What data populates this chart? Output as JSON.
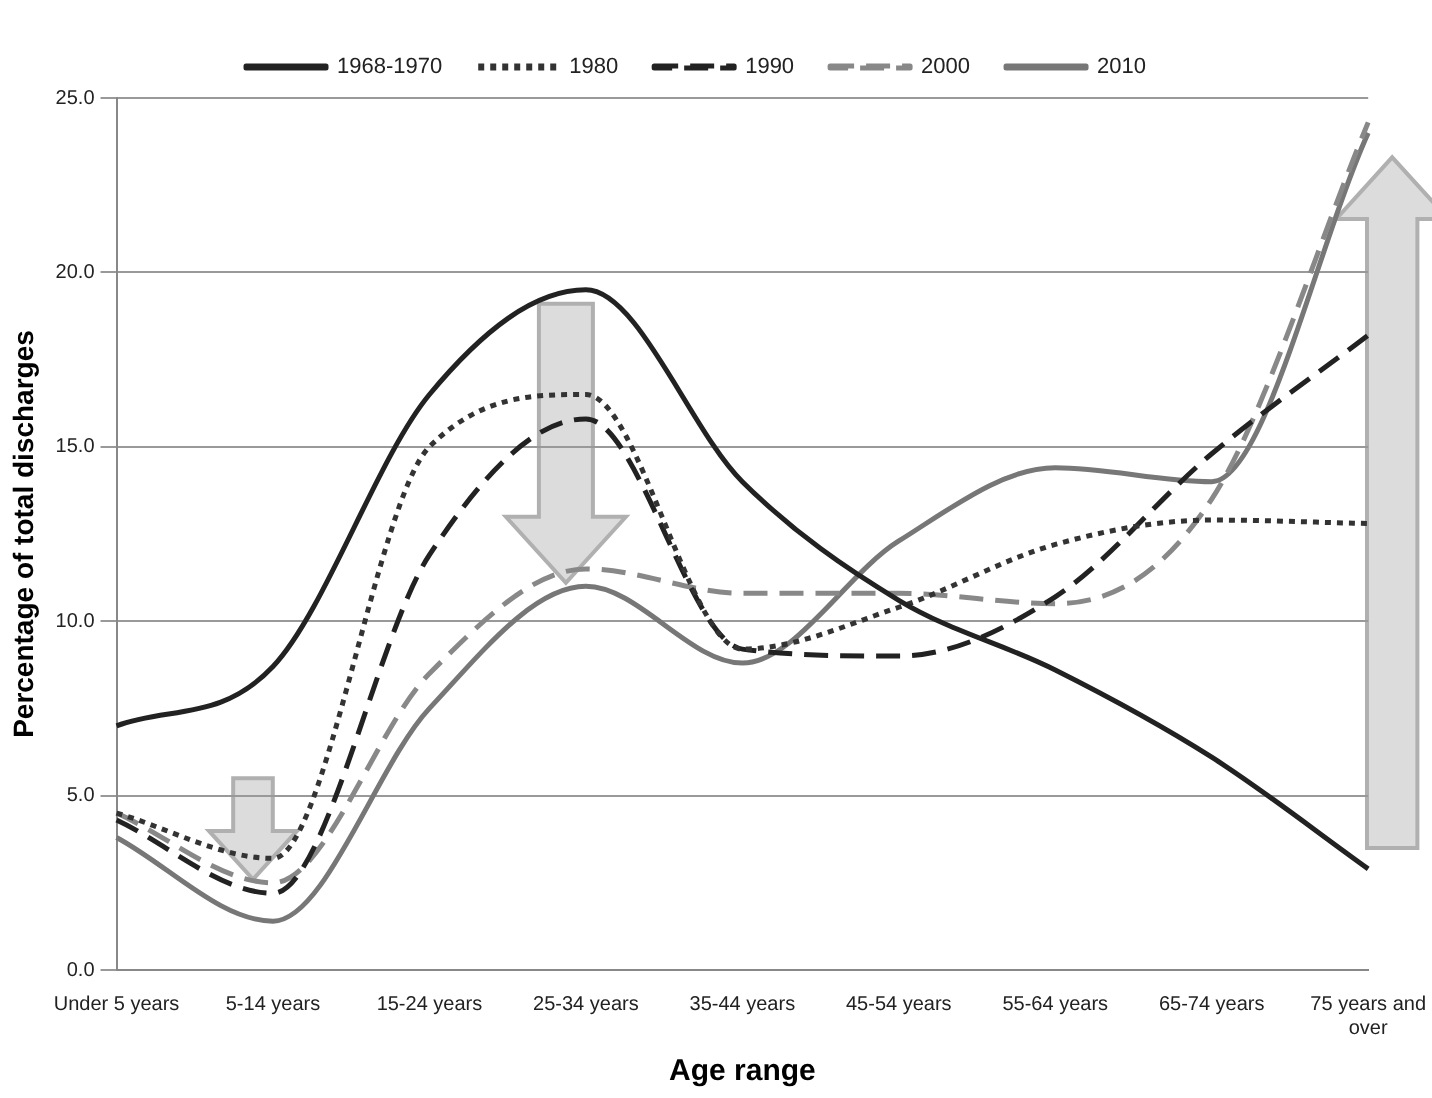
{
  "chart_data": {
    "type": "line",
    "xlabel": "Age range",
    "ylabel": "Percentage of total discharges",
    "categories": [
      "Under 5 years",
      "5-14 years",
      "15-24 years",
      "25-34 years",
      "35-44 years",
      "45-54 years",
      "55-64 years",
      "65-74 years",
      "75 years and over"
    ],
    "series": [
      {
        "name": "1968-1970",
        "color": "#222222",
        "line_style": "solid",
        "values": [
          7.0,
          8.7,
          16.5,
          19.5,
          14.0,
          10.6,
          8.6,
          6.1,
          2.9
        ]
      },
      {
        "name": "1980",
        "color": "#333333",
        "line_style": "dotted",
        "values": [
          4.5,
          3.2,
          15.0,
          16.5,
          9.2,
          10.4,
          12.2,
          12.9,
          12.8
        ]
      },
      {
        "name": "1990",
        "color": "#222222",
        "line_style": "dashed",
        "values": [
          4.3,
          2.2,
          11.9,
          15.8,
          9.2,
          9.0,
          10.7,
          14.8,
          18.2
        ]
      },
      {
        "name": "2000",
        "color": "#888888",
        "line_style": "dashed",
        "values": [
          4.5,
          2.5,
          8.5,
          11.5,
          10.8,
          10.8,
          10.5,
          13.5,
          24.3
        ]
      },
      {
        "name": "2010",
        "color": "#777777",
        "line_style": "solid",
        "values": [
          3.8,
          1.4,
          7.5,
          11.0,
          8.8,
          12.3,
          14.4,
          14.0,
          24.0
        ]
      }
    ],
    "ylim": [
      0,
      25
    ],
    "yticks": [
      {
        "value": 0,
        "label": "0.0"
      },
      {
        "value": 5,
        "label": "5.0"
      },
      {
        "value": 10,
        "label": "10.0"
      },
      {
        "value": 15,
        "label": "15.0"
      },
      {
        "value": 20,
        "label": "20.0"
      },
      {
        "value": 25,
        "label": "25.0"
      }
    ],
    "grid": "y",
    "legend": "top",
    "marker": "none"
  }
}
